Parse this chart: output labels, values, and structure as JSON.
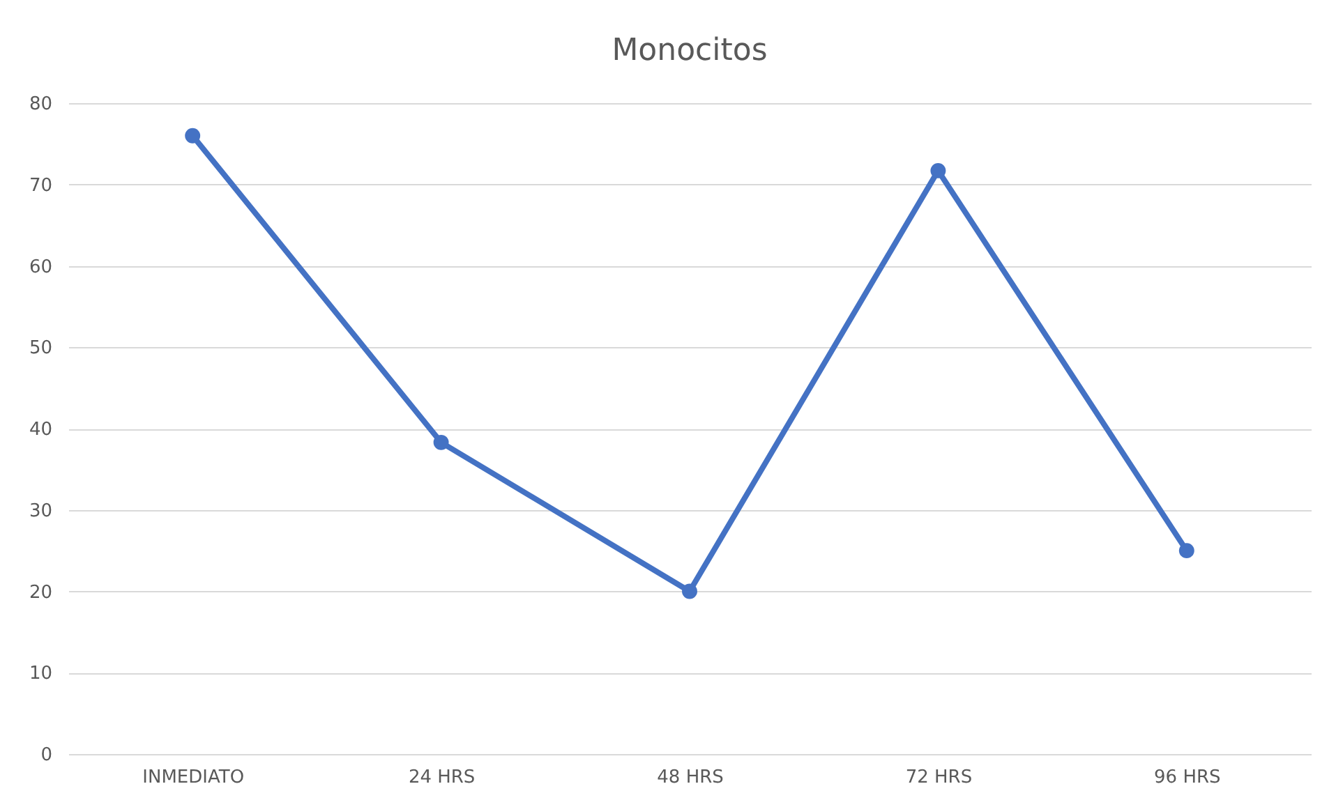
{
  "chart_data": {
    "type": "line",
    "title": "Monocitos",
    "categories": [
      "INMEDIATO",
      "24 HRS",
      "48 HRS",
      "72 HRS",
      "96 HRS"
    ],
    "series": [
      {
        "color": "#4472c4",
        "values": [
          76,
          38.3,
          20,
          71.7,
          25
        ]
      }
    ],
    "ylim": [
      0,
      80
    ],
    "yticks": [
      0,
      10,
      20,
      30,
      40,
      50,
      60,
      70,
      80
    ],
    "grid": "y",
    "marker": "circle",
    "line_style": "solid"
  }
}
